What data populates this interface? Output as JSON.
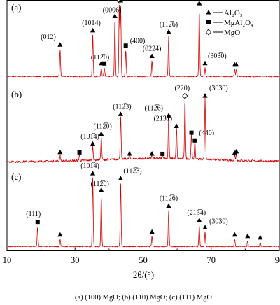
{
  "chart_data": {
    "type": "line",
    "xlabel": "2θ/(°)",
    "xlim": [
      10,
      90
    ],
    "x_ticks": [
      10,
      30,
      50,
      70,
      90
    ],
    "legend": {
      "position": "top-right",
      "entries": [
        {
          "marker": "triangle",
          "label": "Al₂O₃"
        },
        {
          "marker": "square",
          "label": "MgAl₂O₄"
        },
        {
          "marker": "diamond",
          "label": "MgO"
        }
      ]
    },
    "panels": [
      {
        "id": "a",
        "label": "(a)",
        "peaks": [
          {
            "x": 25.6,
            "h": 0.38,
            "marker": "triangle",
            "label": "(01̅2)"
          },
          {
            "x": 35.2,
            "h": 0.58,
            "marker": "triangle",
            "label": "(101̅4)"
          },
          {
            "x": 37.7,
            "h": 0.12,
            "marker": "triangle",
            "label": ""
          },
          {
            "x": 38.6,
            "h": 0.12,
            "marker": "square",
            "label": "(112̅0)"
          },
          {
            "x": 41.7,
            "h": 0.78,
            "marker": "triangle",
            "label": "(0006)"
          },
          {
            "x": 43.0,
            "h": 1.0,
            "marker": "diamond",
            "label": "(200)"
          },
          {
            "x": 43.4,
            "h": 1.0,
            "marker": "triangle",
            "label": "(112̅3)"
          },
          {
            "x": 44.9,
            "h": 0.37,
            "marker": "square",
            "label": "(400)"
          },
          {
            "x": 52.6,
            "h": 0.22,
            "marker": "triangle",
            "label": "(022̅4)"
          },
          {
            "x": 57.5,
            "h": 0.56,
            "marker": "triangle",
            "label": "(112̅6)"
          },
          {
            "x": 66.5,
            "h": 0.96,
            "marker": "triangle",
            "label": "(213̅4)"
          },
          {
            "x": 68.2,
            "h": 0.12,
            "marker": "triangle",
            "label": "(303̅0)"
          },
          {
            "x": 76.9,
            "h": 0.1,
            "marker": "triangle",
            "label": ""
          },
          {
            "x": 77.4,
            "h": 0.1,
            "marker": "triangle",
            "label": ""
          }
        ]
      },
      {
        "id": "b",
        "label": "(b)",
        "peaks": [
          {
            "x": 25.6,
            "h": 0.08,
            "marker": "triangle",
            "label": ""
          },
          {
            "x": 31.3,
            "h": 0.08,
            "marker": "square",
            "label": ""
          },
          {
            "x": 35.2,
            "h": 0.2,
            "marker": "triangle",
            "label": "(101̅4)"
          },
          {
            "x": 37.7,
            "h": 0.34,
            "marker": "triangle",
            "label": "(112̅0)"
          },
          {
            "x": 43.4,
            "h": 0.62,
            "marker": "triangle",
            "label": "(112̅3)"
          },
          {
            "x": 46.0,
            "h": 0.06,
            "marker": "triangle",
            "label": ""
          },
          {
            "x": 52.6,
            "h": 0.06,
            "marker": "triangle",
            "label": ""
          },
          {
            "x": 55.7,
            "h": 0.06,
            "marker": "square",
            "label": ""
          },
          {
            "x": 57.5,
            "h": 0.6,
            "marker": "triangle",
            "label": "(112̅6)"
          },
          {
            "x": 59.8,
            "h": 0.45,
            "marker": "triangle",
            "label": "(213̅1)"
          },
          {
            "x": 62.3,
            "h": 0.88,
            "marker": "diamond",
            "label": "(220)"
          },
          {
            "x": 64.2,
            "h": 0.36,
            "marker": "square",
            "label": ""
          },
          {
            "x": 65.2,
            "h": 0.25,
            "marker": "square",
            "label": "(440)"
          },
          {
            "x": 68.2,
            "h": 0.88,
            "marker": "triangle",
            "label": "(303̅0)"
          },
          {
            "x": 76.9,
            "h": 0.07,
            "marker": "triangle",
            "label": ""
          },
          {
            "x": 77.4,
            "h": 0.09,
            "marker": "triangle",
            "label": ""
          }
        ]
      },
      {
        "id": "c",
        "label": "(c)",
        "peaks": [
          {
            "x": 19.0,
            "h": 0.28,
            "marker": "square",
            "label": "(111)"
          },
          {
            "x": 25.6,
            "h": 0.1,
            "marker": "triangle",
            "label": ""
          },
          {
            "x": 35.2,
            "h": 0.95,
            "marker": "triangle",
            "label": "(101̅4)"
          },
          {
            "x": 37.7,
            "h": 0.72,
            "marker": "triangle",
            "label": "(112̅0)"
          },
          {
            "x": 43.4,
            "h": 0.88,
            "marker": "triangle",
            "label": "(112̅3)"
          },
          {
            "x": 52.6,
            "h": 0.14,
            "marker": "triangle",
            "label": ""
          },
          {
            "x": 57.5,
            "h": 0.5,
            "marker": "triangle",
            "label": "(112̅6)"
          },
          {
            "x": 66.5,
            "h": 0.3,
            "marker": "triangle",
            "label": "(213̅4)"
          },
          {
            "x": 68.2,
            "h": 0.2,
            "marker": "triangle",
            "label": "(303̅0)"
          },
          {
            "x": 76.9,
            "h": 0.1,
            "marker": "triangle",
            "label": ""
          },
          {
            "x": 80.7,
            "h": 0.08,
            "marker": "triangle",
            "label": ""
          },
          {
            "x": 84.4,
            "h": 0.06,
            "marker": "triangle",
            "label": ""
          }
        ]
      }
    ]
  },
  "caption": "(a) (100) MgO; (b) (110) MgO; (c) (111) MgO"
}
